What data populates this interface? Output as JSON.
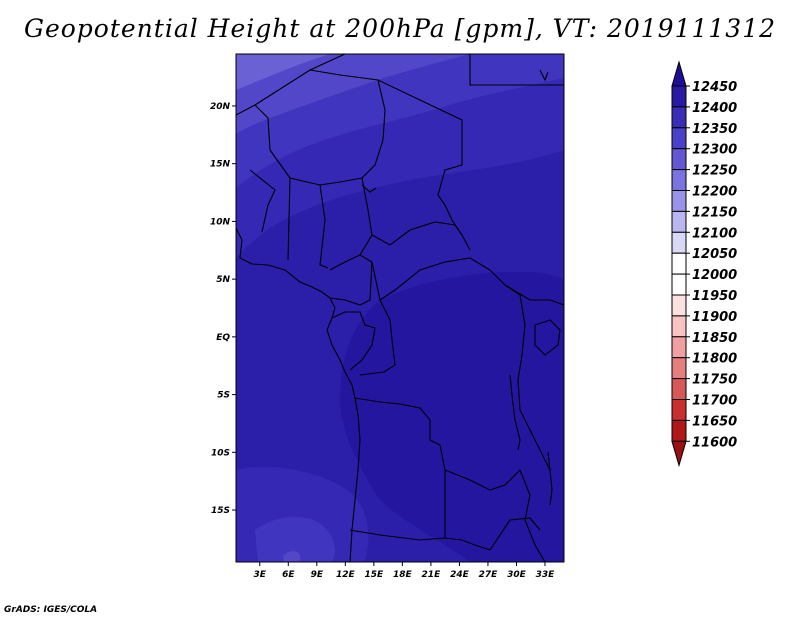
{
  "title": "Geopotential Height at 200hPa [gpm], VT: 2019111312",
  "credit": "GrADS: IGES/COLA",
  "map": {
    "lat_ticks": [
      "20N",
      "15N",
      "10N",
      "5N",
      "EQ",
      "5S",
      "10S",
      "15S"
    ],
    "lat_values": [
      20,
      15,
      10,
      5,
      0,
      -5,
      -10,
      -15
    ],
    "lon_ticks": [
      "3E",
      "6E",
      "9E",
      "12E",
      "15E",
      "18E",
      "21E",
      "24E",
      "27E",
      "30E",
      "33E"
    ],
    "lon_values": [
      3,
      6,
      9,
      12,
      15,
      18,
      21,
      24,
      27,
      30,
      33
    ],
    "lon_range": [
      0.5,
      35
    ],
    "lat_range": [
      -19.5,
      24.5
    ]
  },
  "colorbar": {
    "labels": [
      "12450",
      "12400",
      "12350",
      "12300",
      "12250",
      "12200",
      "12150",
      "12100",
      "12050",
      "12000",
      "11950",
      "11900",
      "11850",
      "11800",
      "11750",
      "11700",
      "11650",
      "11600"
    ],
    "colors": [
      "#1e0d96",
      "#2a1aa3",
      "#3a2eb8",
      "#4b40c8",
      "#6357d4",
      "#7b73df",
      "#9a94e8",
      "#bab6f0",
      "#dad8f7",
      "#ffffff",
      "#ffffff",
      "#fde0e0",
      "#f9c3c3",
      "#f0a0a0",
      "#e57e7e",
      "#d85858",
      "#c83030",
      "#b01818",
      "#991010"
    ]
  },
  "field_colors": {
    "c12450": "#2516a0",
    "c12400": "#2b1ea8",
    "c12350": "#3428b5",
    "c12300": "#3f35bf",
    "c12250": "#5147c8",
    "c12200": "#6a61d4"
  }
}
